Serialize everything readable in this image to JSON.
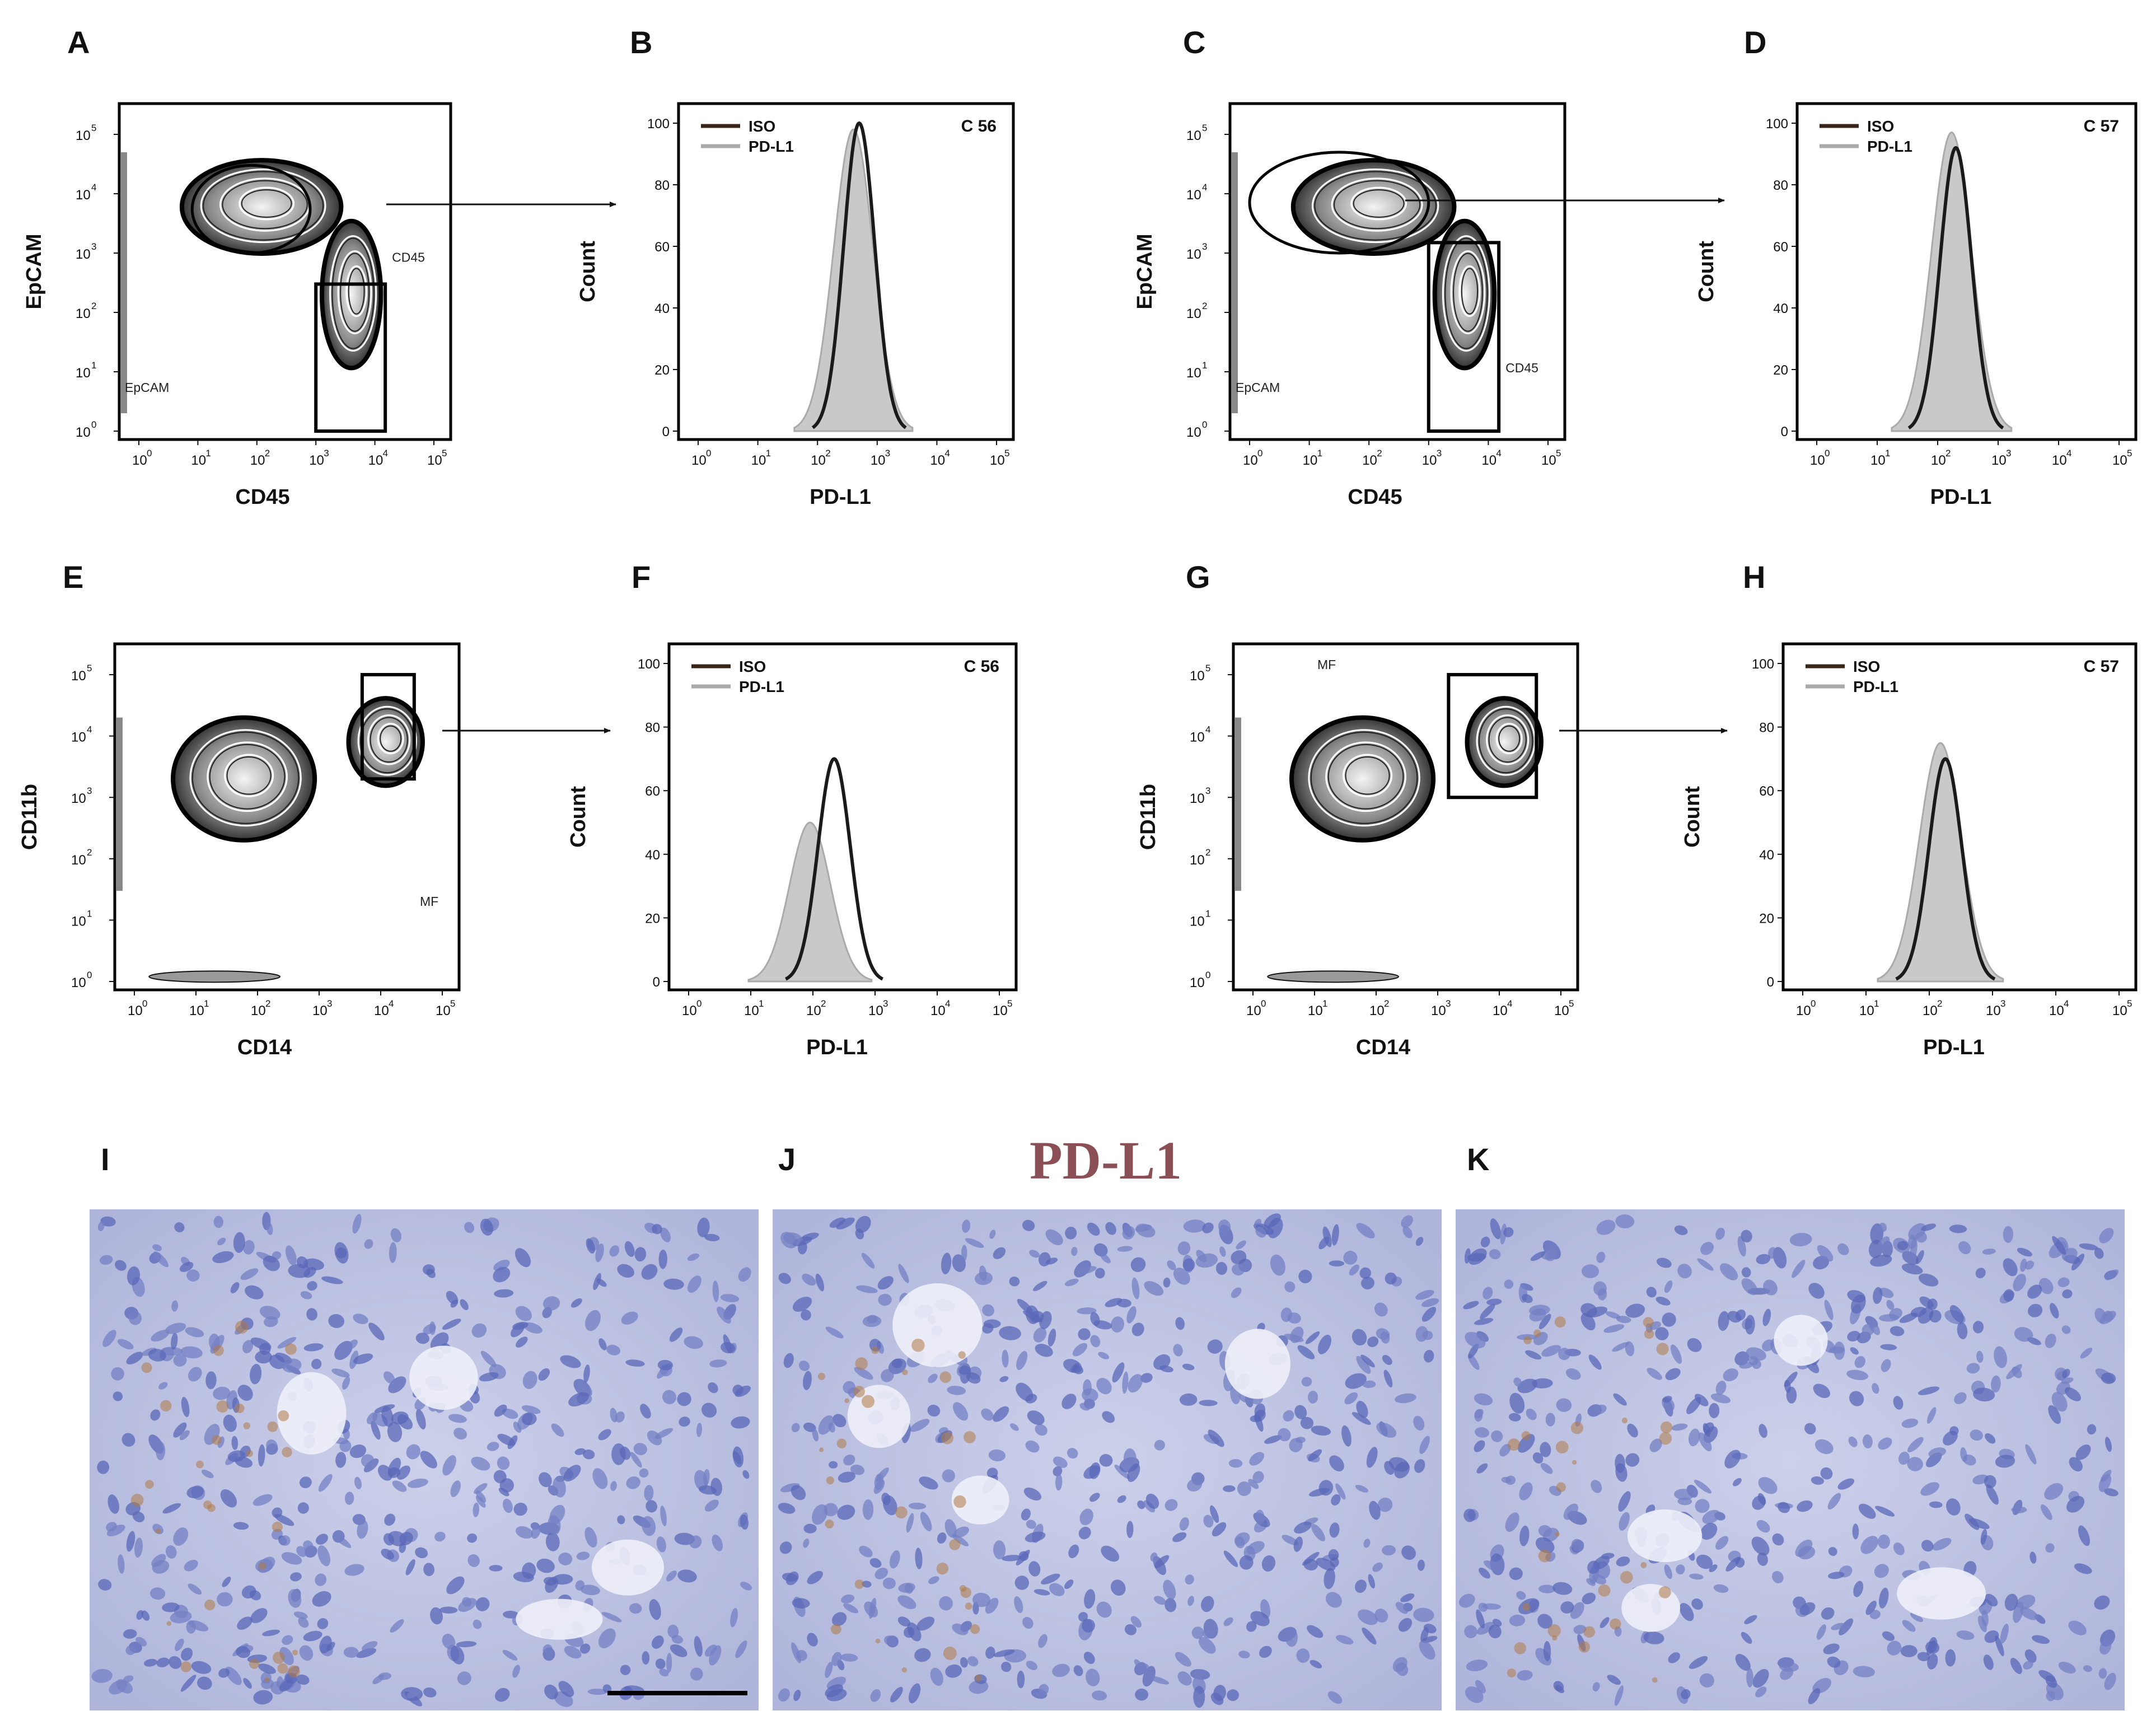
{
  "figure_title": "PD-L1",
  "panel_labels": [
    "A",
    "B",
    "C",
    "D",
    "E",
    "F",
    "G",
    "H",
    "I",
    "J",
    "K"
  ],
  "log_ticks": [
    "10",
    "10",
    "10",
    "10",
    "10",
    "10"
  ],
  "log_exps": [
    "0",
    "1",
    "2",
    "3",
    "4",
    "5"
  ],
  "histogram_ticks": [
    "0",
    "20",
    "40",
    "60",
    "80",
    "100"
  ],
  "colors": {
    "iso_line": "#3a2418",
    "pdl1_line": "#aaaaaa",
    "pdl1_fill": "#c9c9c9",
    "contour": "#111111",
    "ihc_background": "#c2c8e4",
    "ihc_nuclei": "#5a68b8",
    "ihc_brown_stain": "#b07a45"
  },
  "chart_data": [
    {
      "panel": "A",
      "type": "scatter",
      "subtype": "flow-cytometry-contour",
      "xlabel": "CD45",
      "ylabel": "EpCAM",
      "x_scale": "log",
      "y_scale": "log",
      "xlim": [
        1,
        100000
      ],
      "ylim": [
        1,
        100000
      ],
      "gates": [
        {
          "name": "EpCAM",
          "shape": "ellipse",
          "x_range": [
            8,
            800
          ],
          "y_range": [
            1000,
            30000
          ]
        },
        {
          "name": "CD45",
          "shape": "rectangle",
          "x_range": [
            1000,
            15000
          ],
          "y_range": [
            1,
            300
          ]
        }
      ]
    },
    {
      "panel": "B",
      "type": "area",
      "subtype": "histogram-overlay",
      "sample": "C 56",
      "xlabel": "PD-L1",
      "ylabel": "Count",
      "x_scale": "log",
      "xlim": [
        1,
        100000
      ],
      "ylim": [
        0,
        100
      ],
      "series": [
        {
          "name": "ISO",
          "style": "dark outline",
          "peak_x": 500,
          "peak_count": 100
        },
        {
          "name": "PD-L1",
          "style": "grey filled",
          "peak_x": 400,
          "peak_count": 98
        }
      ]
    },
    {
      "panel": "C",
      "type": "scatter",
      "subtype": "flow-cytometry-contour",
      "xlabel": "CD45",
      "ylabel": "EpCAM",
      "x_scale": "log",
      "y_scale": "log",
      "xlim": [
        1,
        100000
      ],
      "ylim": [
        1,
        100000
      ],
      "gates": [
        {
          "name": "EpCAM",
          "shape": "ellipse",
          "x_range": [
            1,
            1000
          ],
          "y_range": [
            1000,
            50000
          ]
        },
        {
          "name": "CD45",
          "shape": "rectangle",
          "x_range": [
            1000,
            15000
          ],
          "y_range": [
            1,
            1500
          ]
        }
      ]
    },
    {
      "panel": "D",
      "type": "area",
      "subtype": "histogram-overlay",
      "sample": "C 57",
      "xlabel": "PD-L1",
      "ylabel": "Count",
      "x_scale": "log",
      "xlim": [
        1,
        100000
      ],
      "ylim": [
        0,
        100
      ],
      "series": [
        {
          "name": "ISO",
          "style": "dark outline",
          "peak_x": 200,
          "peak_count": 92
        },
        {
          "name": "PD-L1",
          "style": "grey filled",
          "peak_x": 170,
          "peak_count": 97
        }
      ]
    },
    {
      "panel": "E",
      "type": "scatter",
      "subtype": "flow-cytometry-contour",
      "xlabel": "CD14",
      "ylabel": "CD11b",
      "x_scale": "log",
      "y_scale": "log",
      "xlim": [
        1,
        100000
      ],
      "ylim": [
        1,
        100000
      ],
      "gates": [
        {
          "name": "MF",
          "shape": "rectangle",
          "x_range": [
            5000,
            35000
          ],
          "y_range": [
            2000,
            100000
          ]
        }
      ]
    },
    {
      "panel": "F",
      "type": "area",
      "subtype": "histogram-overlay",
      "sample": "C 56",
      "xlabel": "PD-L1",
      "ylabel": "Count",
      "x_scale": "log",
      "xlim": [
        1,
        100000
      ],
      "ylim": [
        0,
        100
      ],
      "series": [
        {
          "name": "ISO",
          "style": "dark outline",
          "peak_x": 220,
          "peak_count": 70
        },
        {
          "name": "PD-L1",
          "style": "grey filled",
          "peak_x": 90,
          "peak_count": 50
        }
      ]
    },
    {
      "panel": "G",
      "type": "scatter",
      "subtype": "flow-cytometry-contour",
      "xlabel": "CD14",
      "ylabel": "CD11b",
      "x_scale": "log",
      "y_scale": "log",
      "xlim": [
        1,
        100000
      ],
      "ylim": [
        1,
        100000
      ],
      "gates": [
        {
          "name": "MF",
          "shape": "rectangle",
          "x_range": [
            1500,
            40000
          ],
          "y_range": [
            1000,
            100000
          ]
        }
      ]
    },
    {
      "panel": "H",
      "type": "area",
      "subtype": "histogram-overlay",
      "sample": "C 57",
      "xlabel": "PD-L1",
      "ylabel": "Count",
      "x_scale": "log",
      "xlim": [
        1,
        100000
      ],
      "ylim": [
        0,
        100
      ],
      "series": [
        {
          "name": "ISO",
          "style": "dark outline",
          "peak_x": 180,
          "peak_count": 70
        },
        {
          "name": "PD-L1",
          "style": "grey filled",
          "peak_x": 150,
          "peak_count": 75
        }
      ]
    }
  ],
  "ihc_panels": [
    {
      "panel": "I",
      "stain": "PD-L1",
      "scale_bar": true
    },
    {
      "panel": "J",
      "stain": "PD-L1",
      "scale_bar": false
    },
    {
      "panel": "K",
      "stain": "PD-L1",
      "scale_bar": false
    }
  ]
}
